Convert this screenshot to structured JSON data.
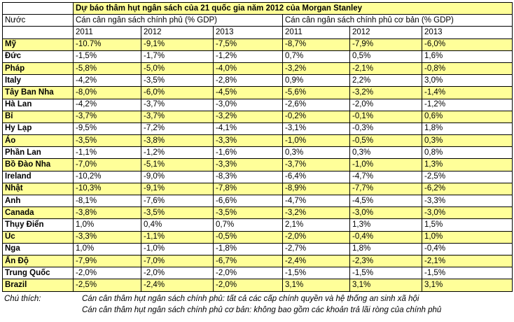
{
  "table": {
    "title": "Dự báo thâm hụt ngân sách của 21 quốc gia năm 2012 của Morgan Stanley",
    "country_header": "Nước",
    "group1_header": "Cán cân ngân sách chính phủ (% GDP)",
    "group2_header": "Cán cân ngân sách chính phủ cơ bản (% GDP)",
    "years": [
      "2011",
      "2012",
      "2013",
      "2011",
      "2012",
      "2013"
    ],
    "highlight_color": "#ffff99",
    "rows": [
      {
        "country": "Mỹ",
        "values": [
          "-10.7%",
          "-9,1%",
          "-7,5%",
          "-8,7%",
          "-7,9%",
          "-6,0%"
        ]
      },
      {
        "country": "Đức",
        "values": [
          "-1,5%",
          "-1,7%",
          "-1,2%",
          "0,7%",
          "0,5%",
          "1,6%"
        ]
      },
      {
        "country": "Pháp",
        "values": [
          "-5,8%",
          "-5,0%",
          "-4,0%",
          "-3,2%",
          "-2,1%",
          "-0,8%"
        ]
      },
      {
        "country": "Italy",
        "values": [
          "-4,2%",
          "-3,5%",
          "-2,8%",
          "0,9%",
          "2,2%",
          "3,0%"
        ]
      },
      {
        "country": "Tây Ban Nha",
        "values": [
          "-8,0%",
          "-6,0%",
          "-4,5%",
          "-5,6%",
          "-3,2%",
          "-1,4%"
        ]
      },
      {
        "country": "Hà Lan",
        "values": [
          "-4,2%",
          "-3,7%",
          "-3,0%",
          "-2,6%",
          "-2,0%",
          "-1,2%"
        ]
      },
      {
        "country": "Bỉ",
        "values": [
          "-3,7%",
          "-3,7%",
          "-3,2%",
          "-0,2%",
          "-0,1%",
          "0,6%"
        ]
      },
      {
        "country": "Hy Lạp",
        "values": [
          "-9,5%",
          "-7,2%",
          "-4,1%",
          "-3,1%",
          "-0,3%",
          "1,8%"
        ]
      },
      {
        "country": "Áo",
        "values": [
          "-3,5%",
          "-3,8%",
          "-3,3%",
          "-1,0%",
          "-0,5%",
          "0,3%"
        ]
      },
      {
        "country": "Phần Lan",
        "values": [
          "-1,1%",
          "-1,2%",
          "-1,6%",
          "0,3%",
          "0,3%",
          "0,8%"
        ]
      },
      {
        "country": "Bồ Đào Nha",
        "values": [
          "-7,0%",
          "-5,1%",
          "-3,3%",
          "-3,7%",
          "-1,0%",
          "1,3%"
        ]
      },
      {
        "country": "Ireland",
        "values": [
          "-10,2%",
          "-9,0%",
          "-8,3%",
          "-6,4%",
          "-4,7%",
          "-2,5%"
        ]
      },
      {
        "country": "Nhật",
        "values": [
          "-10,3%",
          "-9,1%",
          "-7,8%",
          "-8,9%",
          "-7,7%",
          "-6,2%"
        ]
      },
      {
        "country": "Anh",
        "values": [
          "-8,1%",
          "-7,6%",
          "-6,6%",
          "-4,7%",
          "-4,5%",
          "-3,3%"
        ]
      },
      {
        "country": "Canada",
        "values": [
          "-3,8%",
          "-3,5%",
          "-3,5%",
          "-3,2%",
          "-3,0%",
          "-3,0%"
        ]
      },
      {
        "country": "Thụy Điển",
        "values": [
          "1,0%",
          "0,4%",
          "0,7%",
          "2,1%",
          "1,3%",
          "1,5%"
        ]
      },
      {
        "country": "Úc",
        "values": [
          "-3,3%",
          "-1,1%",
          "-0,5%",
          "-2,0%",
          "-0,4%",
          "1,0%"
        ]
      },
      {
        "country": "Nga",
        "values": [
          "1,0%",
          "-1,0%",
          "-1,8%",
          "-2,7%",
          "1,8%",
          "-0,4%"
        ]
      },
      {
        "country": "Ấn Độ",
        "values": [
          "-7,9%",
          "-7,0%",
          "-6,7%",
          "-2,4%",
          "-2,3%",
          "-2,1%"
        ]
      },
      {
        "country": "Trung Quốc",
        "values": [
          "-2,0%",
          "-2,0%",
          "-2,0%",
          "-1,5%",
          "-1,5%",
          "-1,5%"
        ]
      },
      {
        "country": "Brazil",
        "values": [
          "-2,5%",
          "-2,4%",
          "-2,0%",
          "3,1%",
          "3,1%",
          "3,1%"
        ]
      }
    ]
  },
  "notes": {
    "label": "Chú thích:",
    "lines": [
      "Cán cân thâm hụt ngân sách chính phủ: tất cả các cấp chính quyền và hệ thống an sinh xã hội",
      "Cán cân thâm hụt ngân sách chính phủ cơ bản: không bao gồm các khoản trả lãi ròng của chính phủ"
    ]
  }
}
